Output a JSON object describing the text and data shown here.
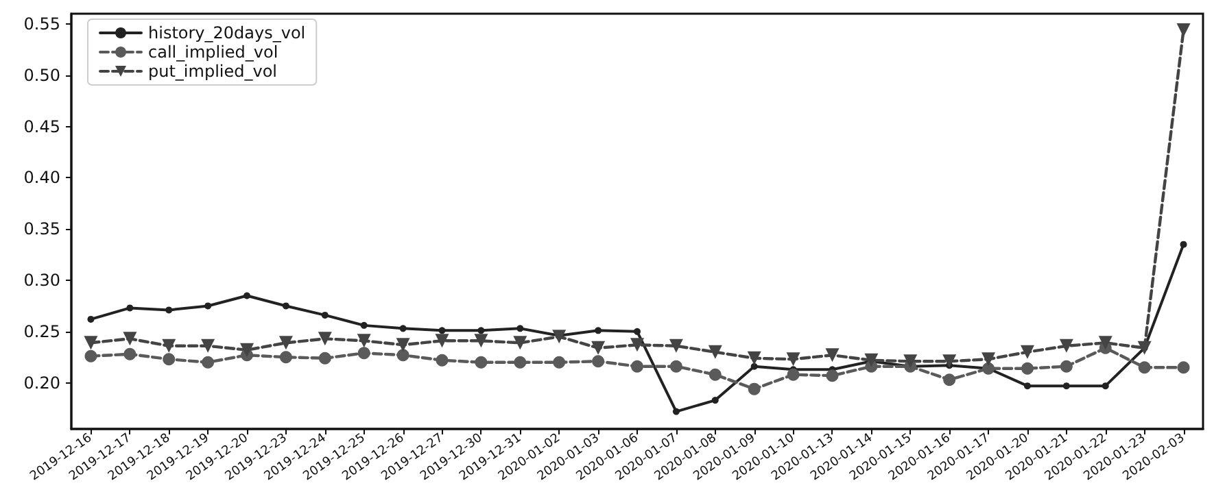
{
  "chart_data": {
    "type": "line",
    "categories": [
      "2019-12-16",
      "2019-12-17",
      "2019-12-18",
      "2019-12-19",
      "2019-12-20",
      "2019-12-23",
      "2019-12-24",
      "2019-12-25",
      "2019-12-26",
      "2019-12-27",
      "2019-12-30",
      "2019-12-31",
      "2020-01-02",
      "2020-01-03",
      "2020-01-06",
      "2020-01-07",
      "2020-01-08",
      "2020-01-09",
      "2020-01-10",
      "2020-01-13",
      "2020-01-14",
      "2020-01-15",
      "2020-01-16",
      "2020-01-17",
      "2020-01-20",
      "2020-01-21",
      "2020-01-22",
      "2020-01-23",
      "2020-02-03"
    ],
    "series": [
      {
        "name": "history_20days_vol",
        "color": "#222222",
        "marker": "circle",
        "line_style": "solid",
        "values": [
          0.262,
          0.273,
          0.271,
          0.275,
          0.285,
          0.275,
          0.266,
          0.256,
          0.253,
          0.251,
          0.251,
          0.253,
          0.246,
          0.251,
          0.25,
          0.172,
          0.183,
          0.216,
          0.213,
          0.213,
          0.221,
          0.216,
          0.217,
          0.214,
          0.197,
          0.197,
          0.197,
          0.234,
          0.335
        ]
      },
      {
        "name": "call_implied_vol",
        "color": "#5a5a5a",
        "marker": "circle",
        "line_style": "dashed",
        "values": [
          0.226,
          0.228,
          0.223,
          0.22,
          0.227,
          0.225,
          0.224,
          0.229,
          0.227,
          0.222,
          0.22,
          0.22,
          0.22,
          0.221,
          0.216,
          0.216,
          0.208,
          0.194,
          0.208,
          0.207,
          0.216,
          0.216,
          0.203,
          0.214,
          0.214,
          0.216,
          0.234,
          0.215,
          0.215
        ]
      },
      {
        "name": "put_implied_vol",
        "color": "#444444",
        "marker": "triangle",
        "line_style": "dashed",
        "values": [
          0.239,
          0.243,
          0.236,
          0.236,
          0.232,
          0.239,
          0.243,
          0.241,
          0.237,
          0.241,
          0.241,
          0.239,
          0.245,
          0.234,
          0.237,
          0.236,
          0.23,
          0.224,
          0.223,
          0.227,
          0.222,
          0.221,
          0.221,
          0.223,
          0.23,
          0.236,
          0.239,
          0.234,
          0.544
        ]
      }
    ],
    "ylim": [
      0.155,
      0.56
    ],
    "yticks": [
      {
        "value": 0.2,
        "label": "0.20"
      },
      {
        "value": 0.25,
        "label": "0.25"
      },
      {
        "value": 0.3,
        "label": "0.30"
      },
      {
        "value": 0.35,
        "label": "0.35"
      },
      {
        "value": 0.4,
        "label": "0.40"
      },
      {
        "value": 0.45,
        "label": "0.45"
      },
      {
        "value": 0.5,
        "label": "0.50"
      },
      {
        "value": 0.55,
        "label": "0.55"
      }
    ],
    "grid": false,
    "legend": "top left"
  }
}
